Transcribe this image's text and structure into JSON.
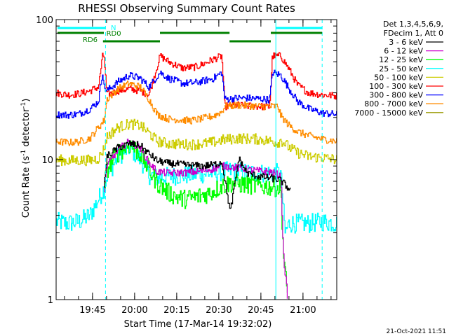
{
  "chart_data": {
    "type": "line",
    "title": "RHESSI Observing Summary Count Rates",
    "xlabel": "Start Time (17-Mar-14 19:32:02)",
    "ylabel": "Count Rate (s",
    "ylabel_sup": "-1",
    "ylabel_tail": " detector",
    "ylabel_close": ")",
    "yscale": "log",
    "ylim": [
      1,
      100
    ],
    "xlim_minutes": [
      0,
      100
    ],
    "x_ticks": [
      {
        "label": "19:45",
        "minute": 12.97
      },
      {
        "label": "20:00",
        "minute": 27.97
      },
      {
        "label": "20:15",
        "minute": 42.97
      },
      {
        "label": "20:30",
        "minute": 57.97
      },
      {
        "label": "20:45",
        "minute": 72.97
      },
      {
        "label": "21:00",
        "minute": 87.97
      }
    ],
    "y_ticks": [
      {
        "label": "1",
        "value": 1
      },
      {
        "label": "10",
        "value": 10
      },
      {
        "label": "100",
        "value": 100
      }
    ],
    "legend_header": [
      "Det 1,3,4,5,6,9,",
      "FDecim 1, Att 0"
    ],
    "series": [
      {
        "name": "3 - 6 keV",
        "color": "#000000",
        "points": [
          [
            17,
            6.2
          ],
          [
            18,
            10.5
          ],
          [
            22,
            12.2
          ],
          [
            26,
            13.0
          ],
          [
            30,
            12.6
          ],
          [
            33,
            11.0
          ],
          [
            36,
            9.8
          ],
          [
            40,
            9.4
          ],
          [
            48,
            9.1
          ],
          [
            52,
            9.0
          ],
          [
            56,
            9.2
          ],
          [
            59,
            9.6
          ],
          [
            62,
            4.2
          ],
          [
            65,
            10.2
          ],
          [
            68,
            8.0
          ],
          [
            72,
            7.6
          ],
          [
            76,
            7.4
          ],
          [
            79,
            7.2
          ],
          [
            80,
            7.1
          ],
          [
            83.5,
            6.0
          ]
        ]
      },
      {
        "name": "6 - 12 keV",
        "color": "#cc00cc",
        "points": [
          [
            17,
            6.2
          ],
          [
            18,
            9.0
          ],
          [
            22,
            11.8
          ],
          [
            26,
            13.5
          ],
          [
            30,
            12.0
          ],
          [
            33,
            9.5
          ],
          [
            36,
            8.2
          ],
          [
            40,
            8.0
          ],
          [
            48,
            8.1
          ],
          [
            52,
            8.3
          ],
          [
            56,
            8.6
          ],
          [
            59,
            9.0
          ],
          [
            62,
            8.9
          ],
          [
            65,
            8.7
          ],
          [
            68,
            8.5
          ],
          [
            72,
            8.3
          ],
          [
            76,
            8.2
          ],
          [
            79,
            7.8
          ],
          [
            80,
            7.6
          ],
          [
            81,
            2.0
          ],
          [
            82.5,
            1.0
          ]
        ]
      },
      {
        "name": "12 - 25 keV",
        "color": "#00ff00",
        "points": [
          [
            17,
            6.2
          ],
          [
            18,
            8.5
          ],
          [
            22,
            11.2
          ],
          [
            26,
            12.8
          ],
          [
            30,
            11.0
          ],
          [
            33,
            8.5
          ],
          [
            36,
            6.8
          ],
          [
            40,
            5.8
          ],
          [
            45,
            5.2
          ],
          [
            50,
            5.4
          ],
          [
            55,
            5.8
          ],
          [
            59,
            6.5
          ],
          [
            62,
            6.8
          ],
          [
            65,
            6.7
          ],
          [
            68,
            6.6
          ],
          [
            72,
            6.5
          ],
          [
            76,
            6.4
          ],
          [
            79,
            6.3
          ],
          [
            80,
            6.2
          ],
          [
            81,
            2.0
          ],
          [
            82.5,
            1.0
          ]
        ]
      },
      {
        "name": "25 - 50 keV",
        "color": "#00ffff",
        "points": [
          [
            0,
            3.6
          ],
          [
            4,
            3.5
          ],
          [
            8,
            3.6
          ],
          [
            12,
            4.0
          ],
          [
            17,
            6.2
          ],
          [
            18,
            7.6
          ],
          [
            22,
            10.5
          ],
          [
            26,
            12.2
          ],
          [
            30,
            10.0
          ],
          [
            33,
            7.8
          ],
          [
            36,
            7.4
          ],
          [
            40,
            7.6
          ],
          [
            48,
            7.8
          ],
          [
            52,
            7.9
          ],
          [
            56,
            8.0
          ],
          [
            59,
            8.2
          ],
          [
            62,
            8.3
          ],
          [
            65,
            8.2
          ],
          [
            68,
            8.1
          ],
          [
            72,
            8.0
          ],
          [
            76,
            8.0
          ],
          [
            79,
            8.0
          ],
          [
            80,
            7.9
          ],
          [
            81.5,
            3.0
          ],
          [
            83,
            3.5
          ],
          [
            90,
            3.5
          ],
          [
            95,
            3.6
          ],
          [
            100,
            3.5
          ]
        ]
      },
      {
        "name": "50 - 100 keV",
        "color": "#cccc00",
        "points": [
          [
            0,
            10.0
          ],
          [
            4,
            9.8
          ],
          [
            8,
            9.9
          ],
          [
            12,
            9.9
          ],
          [
            15,
            10.2
          ],
          [
            17,
            12.0
          ],
          [
            18,
            14.5
          ],
          [
            22,
            17.0
          ],
          [
            26,
            18.0
          ],
          [
            30,
            17.5
          ],
          [
            33,
            15.5
          ],
          [
            36,
            13.5
          ],
          [
            40,
            13.0
          ],
          [
            48,
            12.8
          ],
          [
            52,
            13.0
          ],
          [
            56,
            13.3
          ],
          [
            59,
            13.8
          ],
          [
            62,
            14.0
          ],
          [
            65,
            14.2
          ],
          [
            68,
            14.1
          ],
          [
            72,
            14.0
          ],
          [
            76,
            13.6
          ],
          [
            79,
            13.2
          ],
          [
            80,
            13.8
          ],
          [
            83,
            12.2
          ],
          [
            86,
            11.2
          ],
          [
            90,
            10.5
          ],
          [
            95,
            10.3
          ],
          [
            100,
            10.0
          ]
        ]
      },
      {
        "name": "100 - 300 keV",
        "color": "#ff0000",
        "points": [
          [
            0,
            30.0
          ],
          [
            4,
            29.0
          ],
          [
            8,
            29.5
          ],
          [
            12,
            31.0
          ],
          [
            15,
            33.0
          ],
          [
            16.5,
            55.0
          ],
          [
            17,
            55.0
          ],
          [
            18,
            29.0
          ],
          [
            22,
            31.0
          ],
          [
            26,
            32.0
          ],
          [
            30,
            31.0
          ],
          [
            33,
            29.0
          ],
          [
            37,
            55.0
          ],
          [
            40,
            50.0
          ],
          [
            45,
            45.0
          ],
          [
            50,
            46.0
          ],
          [
            56,
            52.0
          ],
          [
            59,
            55.0
          ],
          [
            60,
            24.0
          ],
          [
            65,
            24.5
          ],
          [
            68,
            24.2
          ],
          [
            72,
            24.0
          ],
          [
            76,
            23.8
          ],
          [
            77,
            55.0
          ],
          [
            80,
            55.0
          ],
          [
            83,
            44.0
          ],
          [
            86,
            34.0
          ],
          [
            90,
            30.0
          ],
          [
            95,
            29.0
          ],
          [
            100,
            28.5
          ]
        ]
      },
      {
        "name": "300 - 800 keV",
        "color": "#0000ff",
        "points": [
          [
            0,
            21.0
          ],
          [
            4,
            20.8
          ],
          [
            8,
            21.2
          ],
          [
            12,
            23.0
          ],
          [
            15,
            26.0
          ],
          [
            16.5,
            43.0
          ],
          [
            17,
            33.0
          ],
          [
            18,
            31.0
          ],
          [
            22,
            36.0
          ],
          [
            26,
            40.0
          ],
          [
            30,
            38.0
          ],
          [
            33,
            33.0
          ],
          [
            37,
            42.0
          ],
          [
            40,
            38.0
          ],
          [
            45,
            35.0
          ],
          [
            50,
            35.5
          ],
          [
            56,
            38.0
          ],
          [
            59,
            42.0
          ],
          [
            60,
            27.0
          ],
          [
            65,
            27.5
          ],
          [
            68,
            27.5
          ],
          [
            72,
            27.2
          ],
          [
            76,
            26.8
          ],
          [
            77,
            42.0
          ],
          [
            80,
            40.0
          ],
          [
            83,
            32.0
          ],
          [
            86,
            26.0
          ],
          [
            90,
            23.0
          ],
          [
            95,
            21.5
          ],
          [
            100,
            21.0
          ]
        ]
      },
      {
        "name": "800 - 7000 keV",
        "color": "#ff8c00",
        "points": [
          [
            0,
            13.5
          ],
          [
            4,
            13.2
          ],
          [
            8,
            13.4
          ],
          [
            12,
            14.2
          ],
          [
            15,
            17.0
          ],
          [
            17,
            19.0
          ],
          [
            18,
            27.0
          ],
          [
            22,
            32.0
          ],
          [
            26,
            35.0
          ],
          [
            30,
            33.0
          ],
          [
            33,
            27.0
          ],
          [
            36,
            21.0
          ],
          [
            40,
            19.5
          ],
          [
            48,
            19.0
          ],
          [
            52,
            19.6
          ],
          [
            56,
            20.5
          ],
          [
            59,
            22.0
          ],
          [
            60,
            24.0
          ],
          [
            65,
            24.5
          ],
          [
            68,
            24.3
          ],
          [
            72,
            24.0
          ],
          [
            76,
            24.0
          ],
          [
            79,
            24.0
          ],
          [
            80,
            20.5
          ],
          [
            83,
            17.5
          ],
          [
            86,
            15.8
          ],
          [
            90,
            14.8
          ],
          [
            95,
            14.0
          ],
          [
            100,
            13.5
          ]
        ]
      },
      {
        "name": "7000 - 15000 keV",
        "color": "#999900",
        "points": []
      }
    ],
    "annotations": {
      "bars": [
        {
          "label": "N",
          "color": "#00ffff"
        },
        {
          "label": "RD0",
          "color": "#008000"
        },
        {
          "label": "RD6",
          "color": "#008000"
        }
      ]
    },
    "vertical_markers": [
      {
        "minute": 17.6,
        "style": "dashed",
        "color": "#00ffff"
      },
      {
        "minute": 78.3,
        "style": "solid",
        "color": "#00ffff"
      },
      {
        "minute": 94.8,
        "style": "dashed",
        "color": "#00ffff"
      }
    ],
    "timestamp": "21-Oct-2021 11:51"
  }
}
